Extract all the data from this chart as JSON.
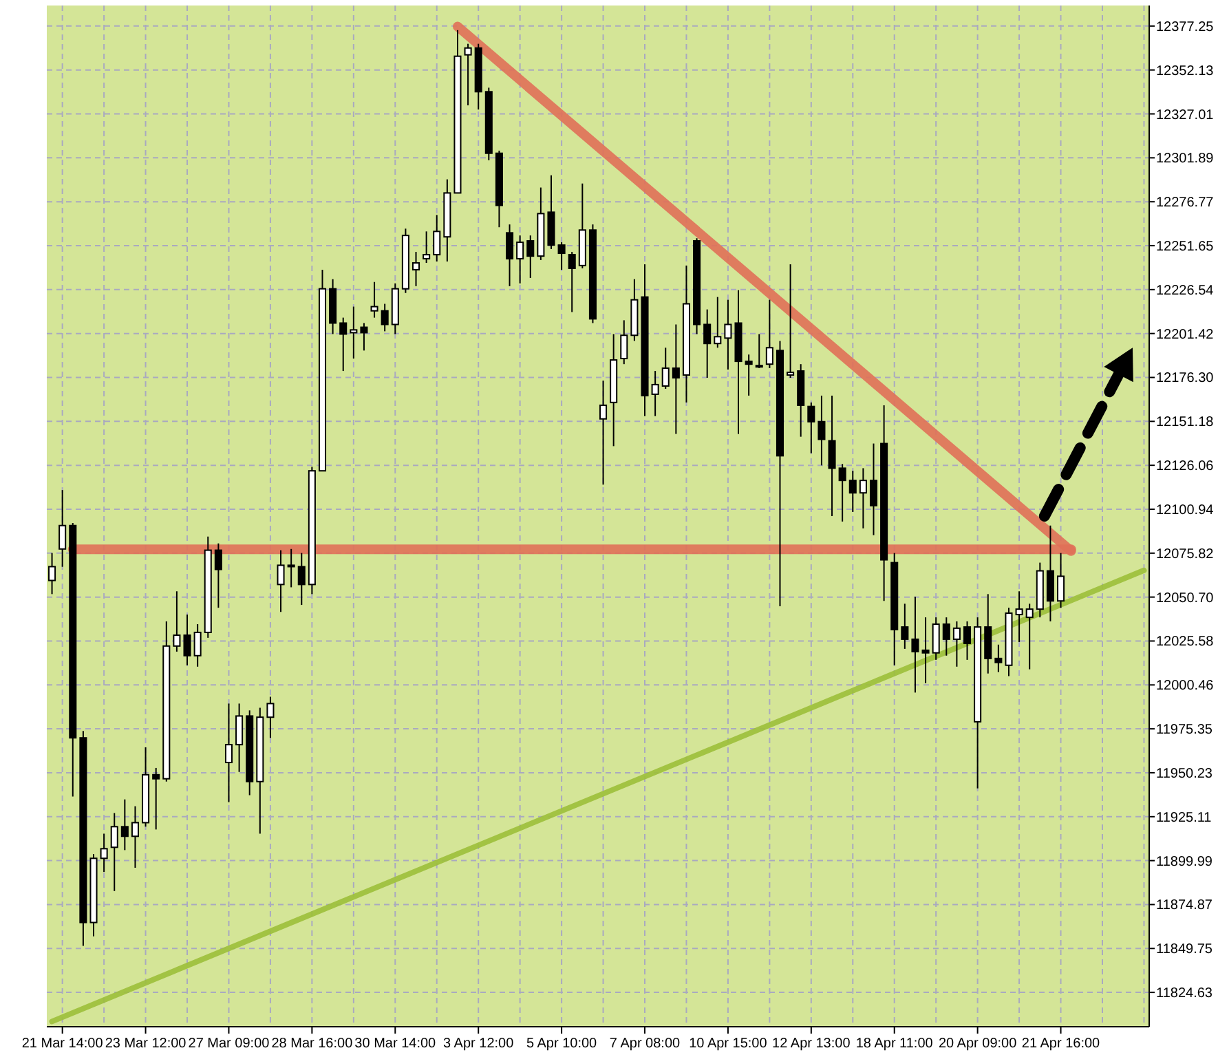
{
  "chart_data": {
    "type": "candlestick",
    "categories": [
      null,
      "21 Mar 14:00",
      null,
      null,
      null,
      null,
      null,
      null,
      null,
      "23 Mar 12:00",
      null,
      null,
      null,
      null,
      null,
      null,
      null,
      "27 Mar 09:00",
      null,
      null,
      null,
      null,
      null,
      null,
      null,
      "28 Mar 16:00",
      null,
      null,
      null,
      null,
      null,
      null,
      null,
      "30 Mar 14:00",
      null,
      null,
      null,
      null,
      null,
      null,
      null,
      "3 Apr 12:00",
      null,
      null,
      null,
      null,
      null,
      null,
      null,
      "5 Apr 10:00",
      null,
      null,
      null,
      null,
      null,
      null,
      null,
      "7 Apr 08:00",
      null,
      null,
      null,
      null,
      null,
      null,
      null,
      "10 Apr 15:00",
      null,
      null,
      null,
      null,
      null,
      null,
      null,
      "12 Apr 13:00",
      null,
      null,
      null,
      null,
      null,
      null,
      null,
      "18 Apr 11:00",
      null,
      null,
      null,
      null,
      null,
      null,
      null,
      "20 Apr 09:00",
      null,
      null,
      null,
      null,
      null,
      null,
      null,
      "21 Apr 16:00",
      null,
      null,
      null,
      null,
      null,
      null,
      null,
      null
    ],
    "ohlc": [
      [
        12060.2,
        12075.9,
        12052.4,
        12068.1
      ],
      [
        12078.2,
        12111.9,
        12068,
        12091.6
      ],
      [
        12091.6,
        12093.1,
        11936.6,
        11970.2
      ],
      [
        11970.2,
        11974.1,
        11851.2,
        11864.6
      ],
      [
        11864.6,
        11903.7,
        11856.7,
        11901.3
      ],
      [
        11901.3,
        11915.4,
        11893.5,
        11906.8
      ],
      [
        11907.6,
        11927.2,
        11882.6,
        11919.4
      ],
      [
        11919.4,
        11935,
        11906,
        11913.9
      ],
      [
        11913.9,
        11931.1,
        11895.9,
        11921.7
      ],
      [
        11921.7,
        11964.8,
        11919.4,
        11949.1
      ],
      [
        11949.1,
        11953,
        11917.8,
        11946.8
      ],
      [
        11946.8,
        12036.8,
        11945.2,
        12022.7
      ],
      [
        12022.7,
        12054,
        12019.5,
        12028.9
      ],
      [
        12028.9,
        12040.7,
        12011.7,
        12017.2
      ],
      [
        12017.2,
        12035.2,
        12010.9,
        12030.5
      ],
      [
        12030.5,
        12085.3,
        12027.4,
        12077.5
      ],
      [
        12077.5,
        12081.4,
        12044.6,
        12066.5
      ],
      [
        11956.1,
        11989.8,
        11933.4,
        11966.3
      ],
      [
        11966.3,
        11989.8,
        11950.7,
        11982.7
      ],
      [
        11982.7,
        11985.9,
        11937.4,
        11945.2
      ],
      [
        11945.2,
        11987.4,
        11915.4,
        11982
      ],
      [
        11982,
        11993.7,
        11970.2,
        11989.8
      ],
      [
        12057.9,
        12077.5,
        12042.2,
        12068.9
      ],
      [
        12068.9,
        12078.2,
        12056.3,
        12068.1
      ],
      [
        12068.1,
        12075.9,
        12046.2,
        12057.9
      ],
      [
        12057.9,
        12125.2,
        12052.4,
        12122.9
      ],
      [
        12122.9,
        12237.9,
        12122.9,
        12227
      ],
      [
        12227,
        12232.5,
        12201.1,
        12207.4
      ],
      [
        12207.4,
        12210.5,
        12180,
        12201.1
      ],
      [
        12201.9,
        12216.8,
        12187.1,
        12203.5
      ],
      [
        12205,
        12207.4,
        12191.7,
        12201.9
      ],
      [
        12214.4,
        12230.9,
        12210.5,
        12216.8
      ],
      [
        12214.4,
        12218.4,
        12202.7,
        12206.6
      ],
      [
        12206.6,
        12230.1,
        12201.1,
        12227
      ],
      [
        12227,
        12261.4,
        12224.6,
        12257.5
      ],
      [
        12237.9,
        12248.1,
        12228.5,
        12241.8
      ],
      [
        12244.2,
        12259.8,
        12241.8,
        12246.5
      ],
      [
        12246.5,
        12269.2,
        12242.6,
        12259.8
      ],
      [
        12256.7,
        12289.6,
        12242.6,
        12281.8
      ],
      [
        12281.8,
        12374.9,
        12281.8,
        12360
      ],
      [
        12360.8,
        12367.1,
        12331.9,
        12364.7
      ],
      [
        12364.7,
        12367.1,
        12329.5,
        12339.7
      ],
      [
        12339.7,
        12342,
        12300.5,
        12304.5
      ],
      [
        12304.5,
        12306,
        12262.2,
        12274.7
      ],
      [
        12259,
        12263.8,
        12228.5,
        12244.2
      ],
      [
        12244.2,
        12257.5,
        12230.1,
        12253.6
      ],
      [
        12254.4,
        12257.5,
        12233.2,
        12245.7
      ],
      [
        12245.7,
        12284.9,
        12243.4,
        12270
      ],
      [
        12270.8,
        12291.9,
        12249.7,
        12252
      ],
      [
        12252,
        12253.6,
        12237.9,
        12247.3
      ],
      [
        12246.5,
        12248.1,
        12213.7,
        12238.7
      ],
      [
        12240.3,
        12287.2,
        12238.7,
        12260.6
      ],
      [
        12260.6,
        12263.8,
        12207.4,
        12209.8
      ],
      [
        12152.6,
        12174.5,
        12115,
        12160.4
      ],
      [
        12162,
        12201.1,
        12137,
        12186.3
      ],
      [
        12187.1,
        12209,
        12183.9,
        12200.4
      ],
      [
        12200.4,
        12232.5,
        12197.2,
        12220.7
      ],
      [
        12222.3,
        12241,
        12154.2,
        12165.9
      ],
      [
        12166.7,
        12180,
        12154.2,
        12172.2
      ],
      [
        12171.4,
        12193.3,
        12169.8,
        12181.6
      ],
      [
        12181.6,
        12206.6,
        12144,
        12176.1
      ],
      [
        12177.7,
        12240.3,
        12162,
        12218.4
      ],
      [
        12254.4,
        12255.9,
        12201.1,
        12206.6
      ],
      [
        12206.6,
        12215.2,
        12176.1,
        12195.7
      ],
      [
        12195.7,
        12222.3,
        12193.3,
        12199.6
      ],
      [
        12198.8,
        12220.7,
        12180.8,
        12206.6
      ],
      [
        12207.4,
        12226.2,
        12144,
        12185.5
      ],
      [
        12185.5,
        12189.4,
        12165.9,
        12183.9
      ],
      [
        12183.1,
        12201.1,
        12181.6,
        12183.1
      ],
      [
        12183.9,
        12220.7,
        12181.6,
        12193.3
      ],
      [
        12191.7,
        12197.2,
        12045.4,
        12131.5
      ],
      [
        12177.7,
        12241,
        12176.1,
        12179.2
      ],
      [
        12180,
        12183.9,
        12142.4,
        12160.4
      ],
      [
        12159.7,
        12162,
        12133,
        12151
      ],
      [
        12151,
        12165.9,
        12126,
        12140.9
      ],
      [
        12140.1,
        12165.9,
        12097,
        12124.4
      ],
      [
        12124.4,
        12126.8,
        12093.9,
        12117.4
      ],
      [
        12117.4,
        12122.9,
        12099.4,
        12110.3
      ],
      [
        12110.3,
        12124.4,
        12090,
        12117.4
      ],
      [
        12117.4,
        12138.5,
        12086.1,
        12103
      ],
      [
        12138.5,
        12160.4,
        12048.5,
        12072
      ],
      [
        12070.4,
        12075.9,
        12011.7,
        12032.1
      ],
      [
        12033.6,
        12046.9,
        12021.1,
        12026.6
      ],
      [
        12026.6,
        12050.9,
        11996.1,
        12019.5
      ],
      [
        12020.3,
        12039.1,
        12001.5,
        12018.8
      ],
      [
        12018.8,
        12039.1,
        12014.8,
        12035.2
      ],
      [
        12035.2,
        12039.1,
        12017.2,
        12026.6
      ],
      [
        12026.6,
        12036.8,
        12010.9,
        12032.9
      ],
      [
        12033.6,
        12036.8,
        12014.8,
        12024.2
      ],
      [
        11979.4,
        12039.1,
        11941.3,
        12033.6
      ],
      [
        12033.6,
        12052.4,
        12007,
        12015.6
      ],
      [
        12015.6,
        12023.5,
        12007.8,
        12013.3
      ],
      [
        12011.7,
        12044.6,
        12005.5,
        12041.5
      ],
      [
        12040.7,
        12054,
        12025,
        12043.8
      ],
      [
        12039.1,
        12046.9,
        12009.4,
        12043.8
      ],
      [
        12043.8,
        12070.4,
        12039.1,
        12065.7
      ],
      [
        12065.7,
        12091.6,
        12036.8,
        12048.5
      ],
      [
        12048.5,
        12075.9,
        12044.6,
        12062.6
      ],
      null,
      null,
      null,
      null,
      null,
      null,
      null,
      null
    ],
    "series": [
      {
        "type": "line",
        "color": "#e07058",
        "values": [
          null,
          null,
          null,
          null,
          null,
          null,
          null,
          null,
          null,
          null,
          null,
          null,
          null,
          null,
          null,
          null,
          null,
          null,
          null,
          null,
          null,
          null,
          null,
          null,
          null,
          null,
          null,
          null,
          null,
          null,
          null,
          null,
          null,
          null,
          null,
          null,
          null,
          null,
          null,
          12377,
          null,
          null,
          null,
          null,
          null,
          null,
          null,
          null,
          null,
          null,
          null,
          null,
          null,
          null,
          null,
          null,
          null,
          null,
          null,
          null,
          null,
          null,
          null,
          null,
          null,
          null,
          null,
          null,
          null,
          null,
          null,
          null,
          null,
          null,
          null,
          null,
          null,
          null,
          null,
          null,
          null,
          null,
          null,
          null,
          null,
          null,
          null,
          null,
          null,
          null,
          null,
          null,
          null,
          null,
          null,
          null,
          null,
          null,
          12077,
          null,
          null,
          null,
          null,
          null,
          null,
          null
        ]
      },
      {
        "type": "line",
        "color": "#e07058",
        "values": [
          null,
          null,
          12078,
          null,
          null,
          null,
          null,
          null,
          null,
          null,
          null,
          null,
          null,
          null,
          null,
          null,
          null,
          null,
          null,
          null,
          null,
          null,
          null,
          null,
          null,
          null,
          null,
          null,
          null,
          null,
          null,
          null,
          null,
          null,
          null,
          null,
          null,
          null,
          null,
          null,
          null,
          null,
          null,
          null,
          null,
          null,
          null,
          null,
          null,
          null,
          null,
          null,
          null,
          null,
          null,
          null,
          null,
          null,
          null,
          null,
          null,
          null,
          null,
          null,
          null,
          null,
          null,
          null,
          null,
          null,
          null,
          null,
          null,
          null,
          null,
          null,
          null,
          null,
          null,
          null,
          null,
          null,
          null,
          null,
          null,
          null,
          null,
          null,
          null,
          null,
          null,
          null,
          null,
          null,
          null,
          null,
          null,
          null,
          12078,
          null,
          null,
          null,
          null,
          null,
          null,
          null
        ]
      },
      {
        "type": "line",
        "color": "#9cbf3a",
        "values": [
          11808,
          null,
          null,
          null,
          null,
          null,
          null,
          null,
          null,
          null,
          null,
          null,
          null,
          null,
          null,
          null,
          null,
          null,
          null,
          null,
          null,
          null,
          null,
          null,
          null,
          null,
          null,
          null,
          null,
          null,
          null,
          null,
          null,
          null,
          null,
          null,
          null,
          null,
          null,
          null,
          null,
          null,
          null,
          null,
          null,
          null,
          null,
          null,
          null,
          null,
          null,
          null,
          null,
          null,
          null,
          null,
          null,
          null,
          null,
          null,
          null,
          null,
          null,
          null,
          null,
          null,
          null,
          null,
          null,
          null,
          null,
          null,
          null,
          null,
          null,
          null,
          null,
          null,
          null,
          null,
          null,
          null,
          null,
          null,
          null,
          null,
          null,
          null,
          null,
          null,
          null,
          null,
          null,
          null,
          null,
          null,
          null,
          null,
          null,
          null,
          null,
          null,
          null,
          null,
          null,
          12066
        ]
      }
    ],
    "ylim": [
      11805,
      12389
    ],
    "yticks": [
      12377.25,
      12352.13,
      12327.01,
      12301.89,
      12276.77,
      12251.65,
      12226.54,
      {
        "value": 12201.42,
        "label": "12201.42"
      },
      {
        "value": 12176.3,
        "label": "12176.30"
      },
      12151.18,
      12126.06,
      12100.94,
      12075.82,
      {
        "value": 12050.7,
        "label": "12050.70"
      },
      12025.58,
      12000.46,
      11975.35,
      11950.23,
      11925.11,
      11899.99,
      11874.87,
      11849.75,
      11824.63
    ],
    "grid": true
  }
}
